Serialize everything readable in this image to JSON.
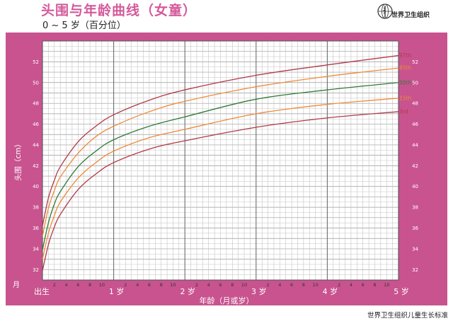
{
  "header": {
    "title": "头围与年龄曲线（女童）",
    "subtitle": "0 ~ 5 岁（百分位）",
    "org": "世界卫生组织"
  },
  "footer": {
    "text": "世界卫生组织儿童生长标准"
  },
  "colors": {
    "frame": "#c8538f",
    "title": "#d45a9a",
    "grid_minor": "#b8b8b8",
    "grid_major": "#6e6e6e"
  },
  "chart_data": {
    "type": "line",
    "title": "头围与年龄曲线（女童）",
    "subtitle": "0 ~ 5 岁（百分位）",
    "xlabel": "年龄（月或岁）",
    "ylabel": "头围（cm）",
    "xlim": [
      0,
      60
    ],
    "ylim": [
      31,
      54
    ],
    "y_ticks": [
      32,
      34,
      36,
      38,
      40,
      42,
      44,
      46,
      48,
      50,
      52
    ],
    "x_year_labels": [
      {
        "month": 0,
        "label": "出生"
      },
      {
        "month": 12,
        "label": "1 岁"
      },
      {
        "month": 24,
        "label": "2 岁"
      },
      {
        "month": 36,
        "label": "3 岁"
      },
      {
        "month": 48,
        "label": "4 岁"
      },
      {
        "month": 60,
        "label": "5 岁"
      }
    ],
    "x_month_labels": [
      "2",
      "4",
      "6",
      "8",
      "10"
    ],
    "month_axis_label": "月",
    "grid": true,
    "series": [
      {
        "name": "97th",
        "color": "#b03a48",
        "x": [
          0,
          1,
          2,
          3,
          6,
          9,
          12,
          18,
          24,
          36,
          48,
          60
        ],
        "y": [
          36.2,
          38.9,
          40.6,
          41.9,
          44.3,
          45.8,
          46.9,
          48.3,
          49.3,
          50.7,
          51.7,
          52.6
        ]
      },
      {
        "name": "85th",
        "color": "#ee8a3a",
        "x": [
          0,
          1,
          2,
          3,
          6,
          9,
          12,
          18,
          24,
          36,
          48,
          60
        ],
        "y": [
          35.2,
          37.9,
          39.6,
          40.9,
          43.2,
          44.8,
          45.8,
          47.2,
          48.2,
          49.6,
          50.6,
          51.4
        ]
      },
      {
        "name": "50th",
        "color": "#2f7a3a",
        "x": [
          0,
          1,
          2,
          3,
          6,
          9,
          12,
          18,
          24,
          36,
          48,
          60
        ],
        "y": [
          33.9,
          36.5,
          38.3,
          39.5,
          41.9,
          43.4,
          44.5,
          45.8,
          46.7,
          48.4,
          49.3,
          50.0
        ]
      },
      {
        "name": "15th",
        "color": "#ee8a3a",
        "x": [
          0,
          1,
          2,
          3,
          6,
          9,
          12,
          18,
          24,
          36,
          48,
          60
        ],
        "y": [
          33.0,
          35.5,
          37.2,
          38.5,
          40.8,
          42.3,
          43.4,
          44.7,
          45.5,
          47.0,
          47.9,
          48.5
        ]
      },
      {
        "name": "3rd",
        "color": "#b03a48",
        "x": [
          0,
          1,
          2,
          3,
          6,
          9,
          12,
          18,
          24,
          36,
          48,
          60
        ],
        "y": [
          31.9,
          34.4,
          36.1,
          37.3,
          39.7,
          41.2,
          42.3,
          43.6,
          44.4,
          45.7,
          46.6,
          47.2
        ]
      }
    ]
  }
}
